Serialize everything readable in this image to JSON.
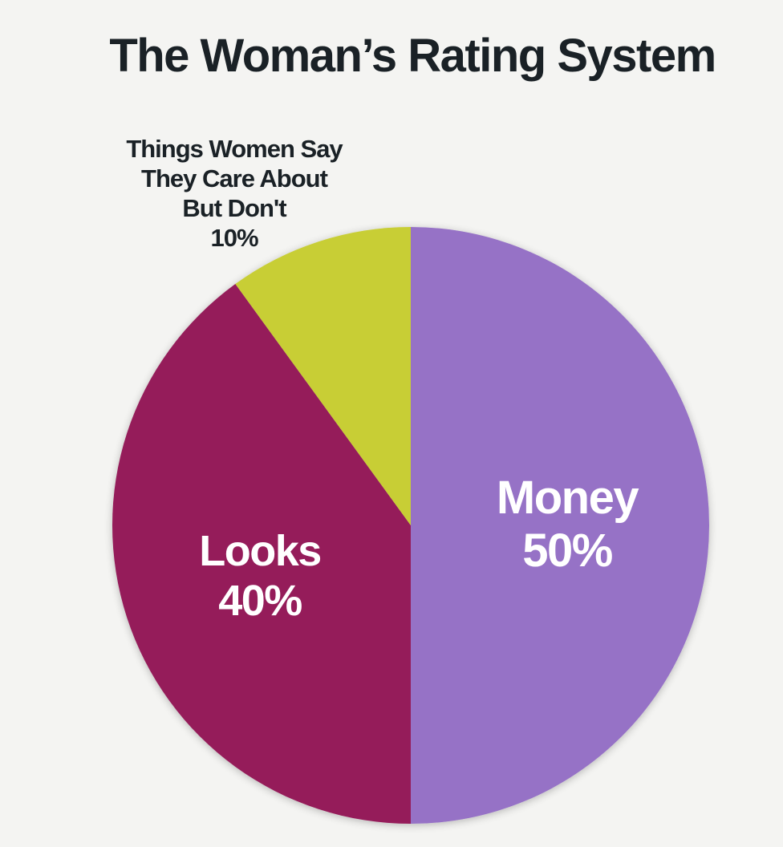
{
  "chart_data": {
    "type": "pie",
    "title": "The Woman’s Rating System",
    "slices": [
      {
        "label": "Money",
        "value": 50,
        "value_label": "50%",
        "color": "#9672c6",
        "label_position": "inside",
        "label_lines": [
          "Money",
          "50%"
        ]
      },
      {
        "label": "Looks",
        "value": 40,
        "value_label": "40%",
        "color": "#951f5a",
        "label_position": "inside",
        "label_lines": [
          "Looks",
          "40%"
        ]
      },
      {
        "label": "Things Women Say They Care About But Don't",
        "value": 10,
        "value_label": "10%",
        "color": "#c8ce35",
        "label_position": "outside",
        "label_lines": [
          "Things Women Say",
          "They Care About",
          "But Don't",
          "10%"
        ]
      }
    ],
    "start_angle": "12 o'clock",
    "direction": "clockwise",
    "legend": "none",
    "background": "#f4f4f2"
  }
}
